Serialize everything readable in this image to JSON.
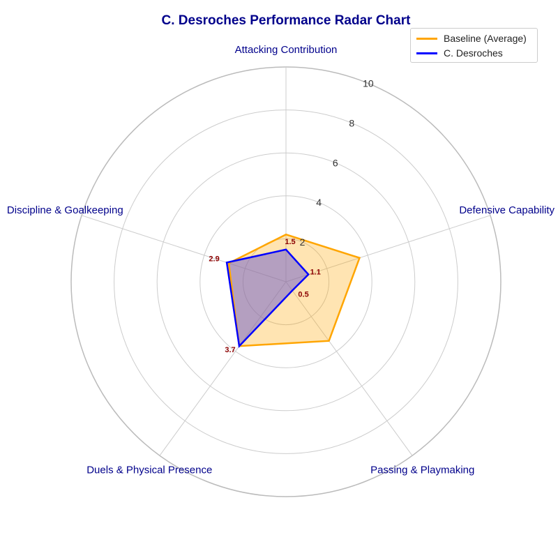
{
  "chart_data": {
    "type": "radar",
    "title": "C. Desroches Performance Radar Chart",
    "axes": [
      "Attacking Contribution",
      "Defensive Capability",
      "Passing & Playmaking",
      "Duels & Physical Presence",
      "Discipline & Goalkeeping"
    ],
    "rlim": [
      0,
      10
    ],
    "rticks": [
      2,
      4,
      6,
      8,
      10
    ],
    "grid": true,
    "legend_position": "top-right",
    "series": [
      {
        "name": "Baseline (Average)",
        "color": "#ffa500",
        "fill": "#ffa500",
        "values": [
          2.2,
          3.6,
          3.4,
          3.7,
          2.8
        ]
      },
      {
        "name": "C. Desroches",
        "color": "#0000ff",
        "fill": "#6a5acd",
        "values": [
          1.5,
          1.1,
          0.5,
          3.7,
          2.9
        ]
      }
    ],
    "data_labels": [
      "1.5",
      "1.1",
      "0.5",
      "3.7",
      "2.9"
    ]
  }
}
